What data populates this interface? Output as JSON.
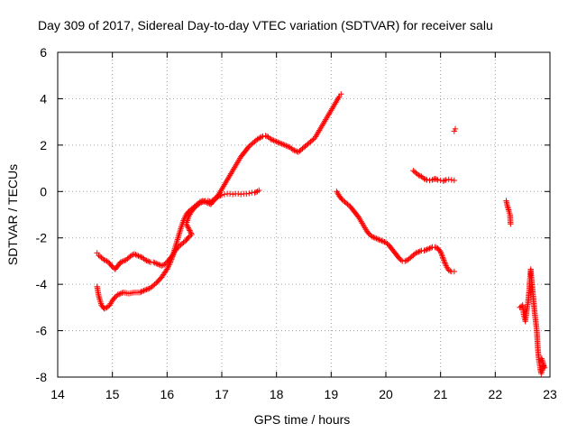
{
  "chart_data": {
    "type": "scatter",
    "title": "Day 309 of 2017, Sidereal Day-to-day VTEC variation (SDTVAR) for receiver salu",
    "xlabel": "GPS time / hours",
    "ylabel": "SDTVAR / TECUs",
    "xlim": [
      14,
      23
    ],
    "ylim": [
      -8,
      6
    ],
    "xticks": [
      "14",
      "15",
      "16",
      "17",
      "18",
      "19",
      "20",
      "21",
      "22",
      "23"
    ],
    "yticks": [
      "-8",
      "-6",
      "-4",
      "-2",
      "0",
      "2",
      "4",
      "6"
    ],
    "grid": true,
    "marker": "plus",
    "color": "#ff0000",
    "series": [
      {
        "points": [
          [
            14.72,
            -4.1
          ],
          [
            14.75,
            -4.5
          ],
          [
            14.8,
            -4.9
          ],
          [
            14.85,
            -5.05
          ],
          [
            14.9,
            -5.0
          ],
          [
            14.95,
            -4.9
          ],
          [
            15.0,
            -4.7
          ],
          [
            15.05,
            -4.55
          ],
          [
            15.1,
            -4.45
          ],
          [
            15.2,
            -4.35
          ],
          [
            15.3,
            -4.4
          ],
          [
            15.4,
            -4.35
          ],
          [
            15.5,
            -4.35
          ],
          [
            15.6,
            -4.25
          ],
          [
            15.7,
            -4.15
          ],
          [
            15.8,
            -3.95
          ],
          [
            15.9,
            -3.7
          ],
          [
            16.0,
            -3.35
          ],
          [
            16.05,
            -3.1
          ],
          [
            16.1,
            -2.8
          ],
          [
            16.15,
            -2.4
          ],
          [
            16.2,
            -2.0
          ],
          [
            16.25,
            -1.6
          ],
          [
            16.3,
            -1.25
          ],
          [
            16.35,
            -1.0
          ],
          [
            16.4,
            -0.85
          ],
          [
            16.45,
            -0.75
          ],
          [
            16.5,
            -0.65
          ],
          [
            16.55,
            -0.55
          ],
          [
            16.6,
            -0.45
          ],
          [
            16.65,
            -0.4
          ],
          [
            16.7,
            -0.45
          ],
          [
            16.75,
            -0.5
          ],
          [
            16.8,
            -0.55
          ],
          [
            16.85,
            -0.4
          ],
          [
            16.9,
            -0.3
          ],
          [
            16.95,
            -0.1
          ],
          [
            17.0,
            0.1
          ],
          [
            17.05,
            0.3
          ],
          [
            17.1,
            0.5
          ],
          [
            17.15,
            0.7
          ],
          [
            17.2,
            0.9
          ],
          [
            17.25,
            1.1
          ],
          [
            17.3,
            1.3
          ],
          [
            17.35,
            1.5
          ],
          [
            17.4,
            1.65
          ],
          [
            17.45,
            1.8
          ],
          [
            17.5,
            1.95
          ],
          [
            17.55,
            2.05
          ],
          [
            17.6,
            2.15
          ],
          [
            17.65,
            2.25
          ],
          [
            17.7,
            2.32
          ],
          [
            17.75,
            2.38
          ],
          [
            17.8,
            2.4
          ],
          [
            17.85,
            2.35
          ],
          [
            17.9,
            2.25
          ],
          [
            17.95,
            2.2
          ],
          [
            18.0,
            2.15
          ],
          [
            18.05,
            2.1
          ],
          [
            18.1,
            2.05
          ],
          [
            18.15,
            2.0
          ],
          [
            18.2,
            1.95
          ],
          [
            18.25,
            1.9
          ],
          [
            18.3,
            1.8
          ],
          [
            18.35,
            1.75
          ],
          [
            18.4,
            1.7
          ],
          [
            18.45,
            1.8
          ],
          [
            18.5,
            1.9
          ],
          [
            18.55,
            2.0
          ],
          [
            18.6,
            2.1
          ],
          [
            18.65,
            2.2
          ],
          [
            18.7,
            2.3
          ],
          [
            18.75,
            2.5
          ],
          [
            18.8,
            2.7
          ],
          [
            18.85,
            2.9
          ],
          [
            18.9,
            3.1
          ],
          [
            18.95,
            3.3
          ],
          [
            19.0,
            3.5
          ],
          [
            19.05,
            3.7
          ],
          [
            19.1,
            3.9
          ],
          [
            19.15,
            4.1
          ],
          [
            19.18,
            4.2
          ]
        ]
      },
      {
        "points": [
          [
            14.72,
            -2.65
          ],
          [
            14.75,
            -2.75
          ],
          [
            14.8,
            -2.85
          ],
          [
            14.85,
            -2.95
          ],
          [
            14.9,
            -3.0
          ],
          [
            14.95,
            -3.1
          ],
          [
            15.0,
            -3.25
          ],
          [
            15.05,
            -3.35
          ],
          [
            15.1,
            -3.2
          ],
          [
            15.15,
            -3.05
          ],
          [
            15.2,
            -3.0
          ],
          [
            15.25,
            -2.95
          ],
          [
            15.3,
            -2.85
          ],
          [
            15.35,
            -2.75
          ],
          [
            15.4,
            -2.7
          ],
          [
            15.45,
            -2.75
          ],
          [
            15.5,
            -2.8
          ],
          [
            15.55,
            -2.85
          ],
          [
            15.6,
            -2.95
          ],
          [
            15.65,
            -3.0
          ],
          [
            15.7,
            -3.05
          ],
          [
            15.75,
            -3.05
          ],
          [
            15.8,
            -3.1
          ],
          [
            15.85,
            -3.15
          ],
          [
            15.9,
            -3.2
          ],
          [
            15.95,
            -3.15
          ],
          [
            16.0,
            -3.05
          ],
          [
            16.05,
            -2.9
          ],
          [
            16.1,
            -2.75
          ],
          [
            16.15,
            -2.55
          ],
          [
            16.2,
            -2.4
          ],
          [
            16.25,
            -2.3
          ],
          [
            16.3,
            -2.2
          ],
          [
            16.35,
            -2.1
          ],
          [
            16.4,
            -1.95
          ],
          [
            16.45,
            -1.85
          ],
          [
            16.35,
            -1.4
          ],
          [
            16.4,
            -1.05
          ],
          [
            16.45,
            -0.85
          ],
          [
            16.5,
            -0.7
          ],
          [
            16.55,
            -0.6
          ],
          [
            16.6,
            -0.5
          ],
          [
            16.65,
            -0.45
          ],
          [
            16.7,
            -0.4
          ],
          [
            16.75,
            -0.4
          ],
          [
            16.8,
            -0.45
          ],
          [
            16.85,
            -0.35
          ],
          [
            16.9,
            -0.25
          ],
          [
            16.95,
            -0.2
          ],
          [
            17.0,
            -0.15
          ],
          [
            17.05,
            -0.12
          ],
          [
            17.1,
            -0.1
          ],
          [
            17.15,
            -0.1
          ],
          [
            17.2,
            -0.12
          ],
          [
            17.25,
            -0.1
          ],
          [
            17.3,
            -0.1
          ],
          [
            17.35,
            -0.12
          ],
          [
            17.4,
            -0.1
          ],
          [
            17.45,
            -0.1
          ],
          [
            17.5,
            -0.08
          ],
          [
            17.55,
            -0.05
          ],
          [
            17.6,
            -0.05
          ],
          [
            17.65,
            0.0
          ],
          [
            17.68,
            0.05
          ]
        ]
      },
      {
        "points": [
          [
            19.1,
            0.0
          ],
          [
            19.15,
            -0.2
          ],
          [
            19.2,
            -0.35
          ],
          [
            19.25,
            -0.45
          ],
          [
            19.3,
            -0.55
          ],
          [
            19.35,
            -0.65
          ],
          [
            19.4,
            -0.8
          ],
          [
            19.45,
            -0.95
          ],
          [
            19.5,
            -1.1
          ],
          [
            19.55,
            -1.3
          ],
          [
            19.6,
            -1.5
          ],
          [
            19.65,
            -1.7
          ],
          [
            19.7,
            -1.85
          ],
          [
            19.75,
            -1.95
          ],
          [
            19.8,
            -2.0
          ],
          [
            19.85,
            -2.05
          ],
          [
            19.9,
            -2.1
          ],
          [
            19.95,
            -2.15
          ],
          [
            20.0,
            -2.2
          ],
          [
            20.05,
            -2.3
          ],
          [
            20.1,
            -2.45
          ],
          [
            20.15,
            -2.6
          ],
          [
            20.2,
            -2.75
          ],
          [
            20.25,
            -2.9
          ],
          [
            20.3,
            -3.0
          ],
          [
            20.35,
            -3.0
          ],
          [
            20.4,
            -2.95
          ],
          [
            20.45,
            -2.85
          ],
          [
            20.5,
            -2.75
          ],
          [
            20.55,
            -2.65
          ],
          [
            20.6,
            -2.6
          ],
          [
            20.65,
            -2.55
          ],
          [
            20.7,
            -2.55
          ],
          [
            20.75,
            -2.5
          ],
          [
            20.8,
            -2.45
          ],
          [
            20.85,
            -2.4
          ],
          [
            20.9,
            -2.4
          ],
          [
            20.95,
            -2.45
          ],
          [
            21.0,
            -2.6
          ],
          [
            21.05,
            -2.9
          ],
          [
            21.1,
            -3.2
          ],
          [
            21.15,
            -3.4
          ],
          [
            21.2,
            -3.45
          ],
          [
            21.25,
            -3.45
          ]
        ]
      },
      {
        "points": [
          [
            20.5,
            0.9
          ],
          [
            20.55,
            0.8
          ],
          [
            20.6,
            0.7
          ],
          [
            20.65,
            0.65
          ],
          [
            20.7,
            0.55
          ],
          [
            20.75,
            0.5
          ],
          [
            20.8,
            0.48
          ],
          [
            20.85,
            0.5
          ],
          [
            20.9,
            0.55
          ],
          [
            20.95,
            0.5
          ],
          [
            21.0,
            0.48
          ],
          [
            21.05,
            0.45
          ],
          [
            21.1,
            0.5
          ],
          [
            21.15,
            0.52
          ],
          [
            21.2,
            0.5
          ],
          [
            21.25,
            0.48
          ],
          [
            21.25,
            2.6
          ],
          [
            21.27,
            2.7
          ]
        ]
      },
      {
        "points": [
          [
            22.2,
            -0.4
          ],
          [
            22.22,
            -0.6
          ],
          [
            22.25,
            -0.85
          ],
          [
            22.27,
            -1.0
          ],
          [
            22.28,
            -1.4
          ],
          [
            22.45,
            -5.0
          ],
          [
            22.5,
            -4.9
          ],
          [
            22.52,
            -5.3
          ],
          [
            22.55,
            -5.6
          ],
          [
            22.57,
            -5.2
          ],
          [
            22.6,
            -4.8
          ],
          [
            22.62,
            -4.3
          ],
          [
            22.63,
            -3.9
          ],
          [
            22.64,
            -3.6
          ],
          [
            22.65,
            -3.35
          ],
          [
            22.66,
            -3.7
          ],
          [
            22.68,
            -4.2
          ],
          [
            22.7,
            -4.7
          ],
          [
            22.72,
            -5.2
          ],
          [
            22.74,
            -5.6
          ],
          [
            22.76,
            -6.0
          ],
          [
            22.78,
            -6.8
          ],
          [
            22.8,
            -7.3
          ],
          [
            22.82,
            -7.6
          ],
          [
            22.84,
            -7.85
          ],
          [
            22.86,
            -7.7
          ],
          [
            22.88,
            -7.5
          ],
          [
            22.9,
            -7.6
          ],
          [
            22.85,
            -7.2
          ]
        ]
      }
    ]
  }
}
